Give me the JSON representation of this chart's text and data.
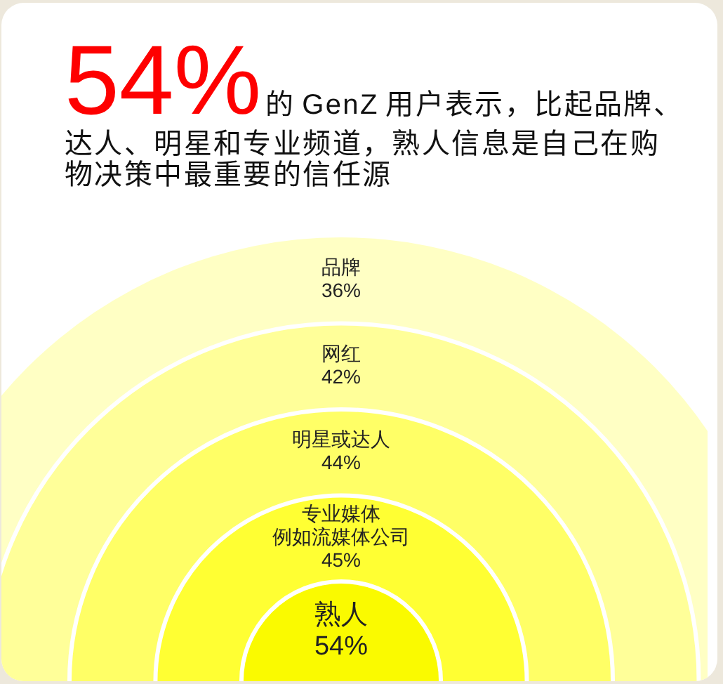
{
  "chart_data": {
    "type": "other",
    "title": "54%的 GenZ 用户表示，比起品牌、达人、明星和专业频道，熟人信息是自己在购物决策中最重要的信任源",
    "categories": [
      "品牌",
      "网红",
      "明星或达人",
      "专业媒体例如流媒体公司",
      "熟人"
    ],
    "values": [
      36,
      42,
      44,
      45,
      54
    ],
    "value_labels": [
      "36%",
      "42%",
      "44%",
      "45%",
      "54%"
    ],
    "colors": [
      "#ffffc4",
      "#ffff99",
      "#ffff66",
      "#ffff33",
      "#fafa00"
    ]
  }
}
